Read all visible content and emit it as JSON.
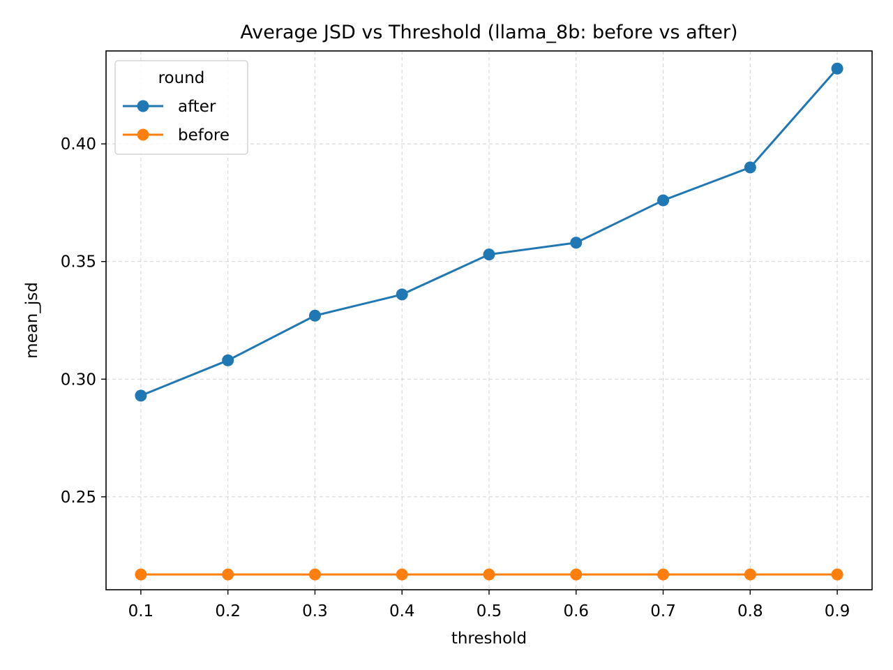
{
  "chart_data": {
    "type": "line",
    "title": "Average JSD vs Threshold (llama_8b: before vs after)",
    "xlabel": "threshold",
    "ylabel": "mean_jsd",
    "x": [
      0.1,
      0.2,
      0.3,
      0.4,
      0.5,
      0.6,
      0.7,
      0.8,
      0.9
    ],
    "x_tick_labels": [
      "0.1",
      "0.2",
      "0.3",
      "0.4",
      "0.5",
      "0.6",
      "0.7",
      "0.8",
      "0.9"
    ],
    "y_ticks": [
      0.25,
      0.3,
      0.35,
      0.4
    ],
    "y_tick_labels": [
      "0.25",
      "0.30",
      "0.35",
      "0.40"
    ],
    "xlim": [
      0.06,
      0.94
    ],
    "ylim": [
      0.2105,
      0.4395
    ],
    "grid": true,
    "legend": {
      "title": "round",
      "placement": "top-left"
    },
    "series": [
      {
        "name": "after",
        "color": "#1f77b4",
        "marker": "circle",
        "values": [
          0.293,
          0.308,
          0.327,
          0.336,
          0.353,
          0.358,
          0.376,
          0.39,
          0.432
        ]
      },
      {
        "name": "before",
        "color": "#ff7f0e",
        "marker": "circle",
        "values": [
          0.217,
          0.217,
          0.217,
          0.217,
          0.217,
          0.217,
          0.217,
          0.217,
          0.217
        ]
      }
    ]
  }
}
